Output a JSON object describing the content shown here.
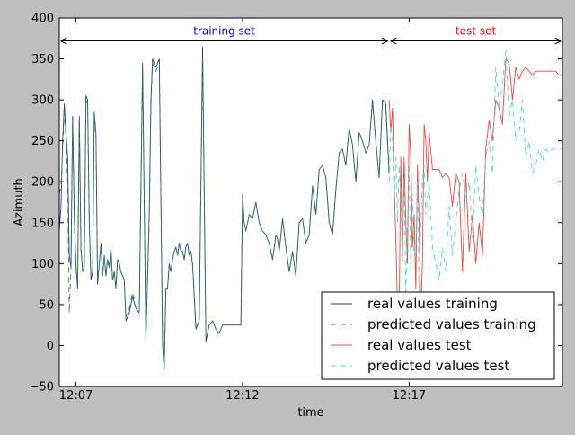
{
  "chart_data": {
    "type": "line",
    "title": "",
    "xlabel": "time",
    "ylabel": "Azimuth",
    "ylim": [
      -50,
      400
    ],
    "yticks": [
      -50,
      0,
      50,
      100,
      150,
      200,
      250,
      300,
      350,
      400
    ],
    "xlim": [
      0,
      15.1
    ],
    "xticks": [
      {
        "x": 0.5,
        "label": "12:07"
      },
      {
        "x": 5.5,
        "label": "12:12"
      },
      {
        "x": 10.5,
        "label": "12:17"
      }
    ],
    "grid": false,
    "legend_position": "lower-right",
    "annotations": [
      {
        "text": "training set",
        "color": "#0000cc",
        "x_start": 0,
        "x_end": 9.9,
        "y": 372
      },
      {
        "text": "test set",
        "color": "#ff0000",
        "x_start": 9.9,
        "x_end": 15.1,
        "y": 372
      }
    ],
    "series": [
      {
        "name": "real values training",
        "color": "#1f3aa0",
        "style": "solid",
        "x": [
          0.0,
          0.05,
          0.1,
          0.15,
          0.2,
          0.25,
          0.3,
          0.35,
          0.4,
          0.45,
          0.5,
          0.55,
          0.6,
          0.65,
          0.7,
          0.75,
          0.8,
          0.85,
          0.9,
          0.95,
          1.0,
          1.05,
          1.1,
          1.15,
          1.2,
          1.25,
          1.3,
          1.35,
          1.4,
          1.45,
          1.5,
          1.55,
          1.6,
          1.65,
          1.7,
          1.75,
          1.8,
          1.85,
          1.9,
          1.95,
          2.0,
          2.1,
          2.2,
          2.3,
          2.4,
          2.5,
          2.6,
          2.7,
          2.75,
          2.8,
          2.9,
          3.0,
          3.1,
          3.15,
          3.2,
          3.25,
          3.3,
          3.35,
          3.4,
          3.45,
          3.5,
          3.55,
          3.6,
          3.65,
          3.7,
          3.75,
          3.8,
          3.85,
          3.9,
          3.95,
          4.0,
          4.1,
          4.2,
          4.3,
          4.4,
          4.5,
          4.6,
          4.7,
          4.8,
          4.9,
          5.0,
          5.1,
          5.2,
          5.3,
          5.4,
          5.45,
          5.5,
          5.55,
          5.6,
          5.7,
          5.8,
          5.9,
          6.0,
          6.1,
          6.2,
          6.3,
          6.4,
          6.5,
          6.55,
          6.6,
          6.7,
          6.8,
          6.9,
          7.0,
          7.1,
          7.2,
          7.3,
          7.4,
          7.5,
          7.6,
          7.7,
          7.8,
          7.9,
          8.0,
          8.1,
          8.2,
          8.3,
          8.4,
          8.5,
          8.6,
          8.7,
          8.8,
          8.9,
          9.0,
          9.1,
          9.2,
          9.3,
          9.4,
          9.5,
          9.6,
          9.7,
          9.8,
          9.9
        ],
        "y": [
          140,
          170,
          250,
          295,
          260,
          230,
          110,
          95,
          280,
          160,
          100,
          70,
          280,
          120,
          90,
          95,
          305,
          300,
          150,
          80,
          90,
          285,
          260,
          75,
          100,
          125,
          85,
          110,
          85,
          105,
          95,
          120,
          80,
          90,
          70,
          105,
          100,
          90,
          85,
          80,
          30,
          40,
          60,
          45,
          40,
          345,
          5,
          160,
          300,
          350,
          340,
          350,
          0,
          -30,
          70,
          70,
          100,
          90,
          105,
          115,
          120,
          110,
          125,
          115,
          115,
          105,
          120,
          125,
          110,
          115,
          100,
          20,
          30,
          365,
          5,
          25,
          30,
          20,
          15,
          25,
          25,
          25,
          25,
          25,
          25,
          25,
          185,
          150,
          140,
          160,
          155,
          175,
          150,
          140,
          135,
          125,
          105,
          135,
          130,
          115,
          155,
          120,
          90,
          115,
          85,
          150,
          155,
          125,
          135,
          195,
          160,
          215,
          220,
          205,
          150,
          135,
          190,
          235,
          240,
          220,
          265,
          245,
          200,
          260,
          250,
          235,
          245,
          300,
          250,
          205,
          300,
          295,
          210
        ]
      },
      {
        "name": "predicted values training",
        "color": "#2e8b2e",
        "style": "dashed",
        "x": [
          0.0,
          0.05,
          0.1,
          0.15,
          0.2,
          0.25,
          0.3,
          0.35,
          0.4,
          0.45,
          0.5,
          0.55,
          0.6,
          0.65,
          0.7,
          0.75,
          0.8,
          0.85,
          0.9,
          0.95,
          1.0,
          1.05,
          1.1,
          1.15,
          1.2,
          1.25,
          1.3,
          1.35,
          1.4,
          1.45,
          1.5,
          1.55,
          1.6,
          1.65,
          1.7,
          1.75,
          1.8,
          1.85,
          1.9,
          1.95,
          2.0,
          2.1,
          2.2,
          2.3,
          2.4,
          2.5,
          2.6,
          2.7,
          2.75,
          2.8,
          2.9,
          3.0,
          3.1,
          3.15,
          3.2,
          3.25,
          3.3,
          3.35,
          3.4,
          3.45,
          3.5,
          3.55,
          3.6,
          3.65,
          3.7,
          3.75,
          3.8,
          3.85,
          3.9,
          3.95,
          4.0,
          4.1,
          4.2,
          4.3,
          4.4,
          4.5,
          4.6,
          4.7,
          4.8,
          4.9,
          5.0,
          5.1,
          5.2,
          5.3,
          5.4,
          5.45,
          5.5,
          5.55,
          5.6,
          5.7,
          5.8,
          5.9,
          6.0,
          6.1,
          6.2,
          6.3,
          6.4,
          6.5,
          6.55,
          6.6,
          6.7,
          6.8,
          6.9,
          7.0,
          7.1,
          7.2,
          7.3,
          7.4,
          7.5,
          7.6,
          7.7,
          7.8,
          7.9,
          8.0,
          8.1,
          8.2,
          8.3,
          8.4,
          8.5,
          8.6,
          8.7,
          8.8,
          8.9,
          9.0,
          9.1,
          9.2,
          9.3,
          9.4,
          9.5,
          9.6,
          9.7,
          9.8,
          9.9
        ],
        "y": [
          185,
          195,
          240,
          285,
          255,
          200,
          40,
          95,
          275,
          150,
          95,
          75,
          275,
          115,
          90,
          100,
          300,
          295,
          145,
          85,
          90,
          280,
          255,
          80,
          100,
          120,
          85,
          110,
          85,
          105,
          95,
          120,
          80,
          90,
          70,
          105,
          100,
          90,
          85,
          80,
          35,
          45,
          65,
          45,
          40,
          335,
          10,
          150,
          290,
          345,
          335,
          345,
          5,
          -25,
          70,
          70,
          100,
          90,
          105,
          115,
          120,
          110,
          125,
          115,
          115,
          105,
          120,
          125,
          110,
          115,
          100,
          25,
          30,
          355,
          10,
          25,
          30,
          20,
          15,
          25,
          25,
          25,
          25,
          25,
          25,
          25,
          180,
          150,
          140,
          160,
          155,
          175,
          150,
          140,
          135,
          125,
          105,
          135,
          130,
          115,
          155,
          120,
          90,
          115,
          85,
          150,
          155,
          125,
          135,
          195,
          160,
          215,
          220,
          205,
          150,
          135,
          190,
          235,
          240,
          220,
          265,
          245,
          200,
          260,
          250,
          235,
          245,
          295,
          250,
          205,
          295,
          290,
          205
        ]
      },
      {
        "name": "real values test",
        "color": "#ff4040",
        "style": "solid",
        "x": [
          9.9,
          9.95,
          10.0,
          10.05,
          10.1,
          10.15,
          10.2,
          10.25,
          10.3,
          10.35,
          10.4,
          10.45,
          10.5,
          10.55,
          10.6,
          10.65,
          10.7,
          10.75,
          10.8,
          10.85,
          10.9,
          10.95,
          11.0,
          11.05,
          11.1,
          11.2,
          11.3,
          11.4,
          11.5,
          11.6,
          11.7,
          11.8,
          11.9,
          12.0,
          12.1,
          12.2,
          12.3,
          12.4,
          12.5,
          12.6,
          12.7,
          12.8,
          12.9,
          13.0,
          13.1,
          13.2,
          13.3,
          13.4,
          13.5,
          13.6,
          13.7,
          13.8,
          13.9,
          14.0,
          14.1,
          14.2,
          14.3,
          14.4,
          14.5,
          14.6,
          14.7,
          14.8,
          14.9,
          15.0,
          15.1
        ],
        "y": [
          300,
          260,
          290,
          200,
          130,
          50,
          40,
          230,
          110,
          230,
          150,
          100,
          270,
          230,
          120,
          160,
          70,
          220,
          150,
          40,
          100,
          270,
          250,
          200,
          260,
          215,
          215,
          215,
          205,
          210,
          205,
          170,
          210,
          200,
          90,
          210,
          115,
          160,
          100,
          150,
          110,
          240,
          275,
          250,
          300,
          290,
          270,
          350,
          345,
          300,
          340,
          325,
          335,
          340,
          335,
          330,
          335,
          335,
          335,
          335,
          335,
          335,
          335,
          330,
          330
        ]
      },
      {
        "name": "predicted values test",
        "color": "#40e0d0",
        "style": "dashed",
        "x": [
          9.9,
          9.95,
          10.0,
          10.05,
          10.1,
          10.15,
          10.2,
          10.25,
          10.3,
          10.35,
          10.4,
          10.45,
          10.5,
          10.55,
          10.6,
          10.65,
          10.7,
          10.75,
          10.8,
          10.85,
          10.9,
          10.95,
          11.0,
          11.05,
          11.1,
          11.2,
          11.3,
          11.4,
          11.5,
          11.6,
          11.7,
          11.8,
          11.9,
          12.0,
          12.1,
          12.2,
          12.3,
          12.4,
          12.5,
          12.6,
          12.7,
          12.8,
          12.9,
          13.0,
          13.1,
          13.2,
          13.3,
          13.4,
          13.5,
          13.6,
          13.7,
          13.8,
          13.9,
          14.0,
          14.1,
          14.2,
          14.3,
          14.4,
          14.5,
          14.6,
          14.7,
          14.8,
          14.9,
          15.0,
          15.1
        ],
        "y": [
          200,
          270,
          250,
          180,
          230,
          150,
          220,
          180,
          100,
          200,
          60,
          150,
          220,
          90,
          180,
          110,
          120,
          200,
          60,
          150,
          200,
          220,
          160,
          180,
          200,
          120,
          100,
          80,
          120,
          90,
          170,
          110,
          150,
          190,
          210,
          180,
          200,
          130,
          220,
          180,
          160,
          230,
          250,
          210,
          340,
          290,
          320,
          360,
          280,
          300,
          250,
          260,
          300,
          230,
          250,
          210,
          220,
          240,
          225,
          240,
          235,
          240,
          240,
          240,
          240
        ]
      }
    ]
  }
}
